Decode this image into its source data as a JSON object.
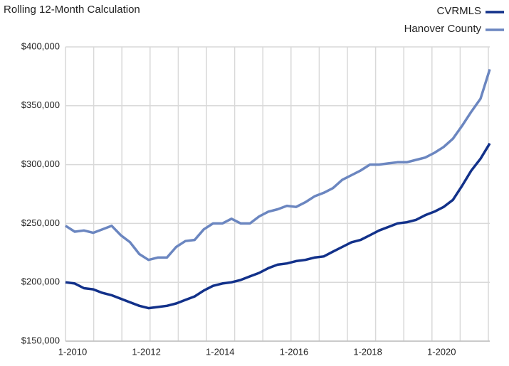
{
  "chart_data": {
    "type": "line",
    "title": "Rolling 12-Month Calculation",
    "categories": [
      "1-2010",
      null,
      null,
      null,
      null,
      null,
      null,
      null,
      "1-2012",
      null,
      null,
      null,
      null,
      null,
      null,
      null,
      "1-2014",
      null,
      null,
      null,
      null,
      null,
      null,
      null,
      "1-2016",
      null,
      null,
      null,
      null,
      null,
      null,
      null,
      "1-2018",
      null,
      null,
      null,
      null,
      null,
      null,
      null,
      "1-2020",
      null,
      null,
      null,
      null,
      null,
      null
    ],
    "series": [
      {
        "name": "CVRMLS",
        "color": "#12318a",
        "values": [
          200000,
          199000,
          195000,
          194000,
          191000,
          189000,
          186000,
          183000,
          180000,
          178000,
          179000,
          180000,
          182000,
          185000,
          188000,
          193000,
          197000,
          199000,
          200000,
          202000,
          205000,
          208000,
          212000,
          215000,
          216000,
          218000,
          219000,
          221000,
          222000,
          226000,
          230000,
          234000,
          236000,
          240000,
          244000,
          247000,
          250000,
          251000,
          253000,
          257000,
          260000,
          264000,
          270000,
          282000,
          295000,
          305000,
          318000
        ]
      },
      {
        "name": "Hanover County",
        "color": "#6b86c0",
        "values": [
          248000,
          243000,
          244000,
          242000,
          245000,
          248000,
          240000,
          234000,
          224000,
          219000,
          221000,
          221000,
          230000,
          235000,
          236000,
          245000,
          250000,
          250000,
          254000,
          250000,
          250000,
          256000,
          260000,
          262000,
          265000,
          264000,
          268000,
          273000,
          276000,
          280000,
          287000,
          291000,
          295000,
          300000,
          300000,
          301000,
          302000,
          302000,
          304000,
          306000,
          310000,
          315000,
          322000,
          333000,
          345000,
          356000,
          381000
        ]
      }
    ],
    "ylim": [
      150000,
      400000
    ],
    "yticks": [
      {
        "value": 150000,
        "label": "$150,000"
      },
      {
        "value": 200000,
        "label": "$200,000"
      },
      {
        "value": 250000,
        "label": "$250,000"
      },
      {
        "value": 300000,
        "label": "$300,000"
      },
      {
        "value": 350000,
        "label": "$350,000"
      },
      {
        "value": 400000,
        "label": "$400,000"
      }
    ],
    "grid": true,
    "legend": "top-right"
  }
}
